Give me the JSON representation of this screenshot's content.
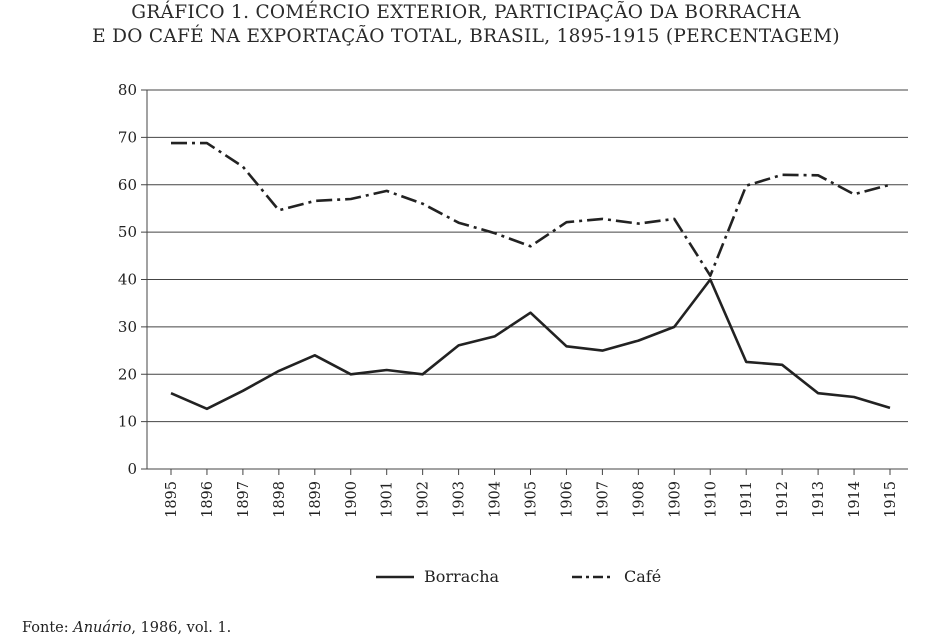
{
  "chart_data": {
    "type": "line",
    "title_line1": "GRÁFICO 1. COMÉRCIO EXTERIOR, PARTICIPAÇÃO DA BORRACHA",
    "title_line2": "E DO CAFÉ NA EXPORTAÇÃO TOTAL, BRASIL, 1895-1915 (PERCENTAGEM)",
    "xlabel": "",
    "ylabel": "",
    "ylim": [
      0,
      80
    ],
    "yticks": [
      0,
      10,
      20,
      30,
      40,
      50,
      60,
      70,
      80
    ],
    "grid": true,
    "categories": [
      "1895",
      "1896",
      "1897",
      "1898",
      "1899",
      "1900",
      "1901",
      "1902",
      "1903",
      "1904",
      "1905",
      "1906",
      "1907",
      "1908",
      "1909",
      "1910",
      "1911",
      "1912",
      "1913",
      "1914",
      "1915"
    ],
    "series": [
      {
        "name": "Borracha",
        "style": "solid",
        "color": "#222222",
        "values": [
          16,
          12.7,
          16.5,
          20.7,
          24,
          20,
          20.9,
          20,
          26.1,
          28,
          33,
          25.9,
          25,
          27.1,
          30,
          40,
          22.6,
          22,
          16,
          15.2,
          12.9
        ]
      },
      {
        "name": "Café",
        "style": "dashdot",
        "color": "#222222",
        "values": [
          68.8,
          68.8,
          63.8,
          54.6,
          56.6,
          57,
          58.7,
          56,
          52,
          49.8,
          47,
          52.1,
          52.8,
          51.8,
          52.8,
          40.8,
          59.8,
          62.1,
          62,
          58,
          60
        ]
      }
    ],
    "legend_position": "bottom-center"
  },
  "source": {
    "prefix": "Fonte: ",
    "title": "Anuário",
    "suffix": ", 1986, vol. 1."
  }
}
